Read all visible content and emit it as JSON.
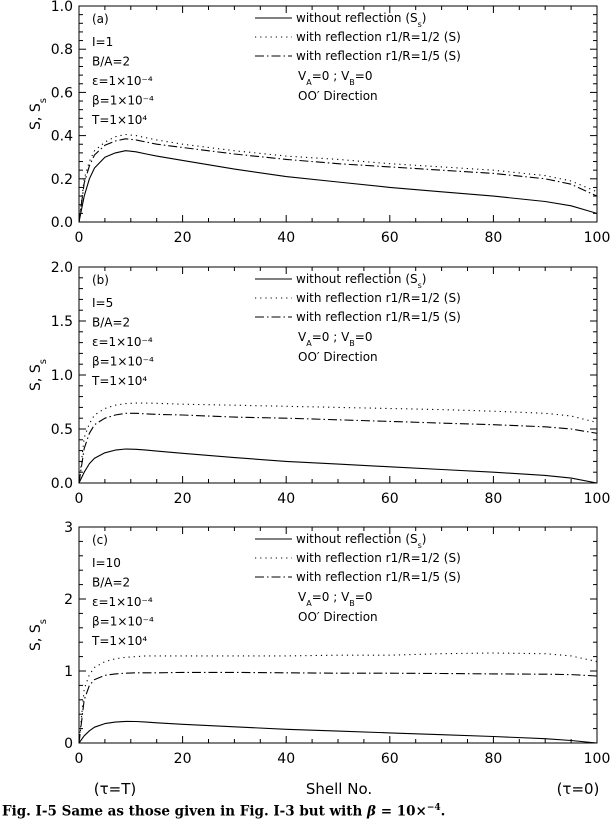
{
  "figure": {
    "xlabel": "Shell No.",
    "x_end_labels": {
      "left": "(τ=T)",
      "right": "(τ=0)"
    },
    "caption": {
      "prefix": "Fig. I-5 Same as those given in Fig. I-3 but with ",
      "beta_symbol": "β",
      "eq_value": " = 10×",
      "exponent": "−4",
      "suffix": "."
    }
  },
  "chart_data": [
    {
      "type": "line",
      "panel_label": "(a)",
      "ylabel": "S, S_s",
      "xlim": [
        0,
        100
      ],
      "ylim": [
        0,
        1.0
      ],
      "xticks": [
        0,
        20,
        40,
        60,
        80,
        100
      ],
      "yticks": [
        0.0,
        0.2,
        0.4,
        0.6,
        0.8,
        1.0
      ],
      "ytick_labels": [
        "0.0",
        "0.2",
        "0.4",
        "0.6",
        "0.8",
        "1.0"
      ],
      "params": [
        "I=1",
        "B/A=2",
        "ε=1×10⁻⁴",
        "β=1×10⁻⁴",
        "T=1×10⁴"
      ],
      "notes": [
        "V_A=0 ; V_B=0",
        "OO′ Direction"
      ],
      "series": [
        {
          "name": "without reflection (S_s)",
          "style": "solid",
          "x": [
            0,
            1,
            2,
            3,
            5,
            7,
            9,
            11,
            13,
            15,
            20,
            30,
            40,
            50,
            60,
            70,
            80,
            90,
            95,
            100
          ],
          "values": [
            0.0,
            0.12,
            0.2,
            0.25,
            0.3,
            0.32,
            0.33,
            0.325,
            0.315,
            0.305,
            0.285,
            0.245,
            0.21,
            0.185,
            0.16,
            0.14,
            0.12,
            0.095,
            0.075,
            0.04
          ]
        },
        {
          "name": "with reflection r1/R=1/2 (S)",
          "style": "dotted",
          "x": [
            0,
            1,
            2,
            3,
            5,
            7,
            9,
            11,
            13,
            15,
            20,
            30,
            40,
            50,
            60,
            70,
            80,
            90,
            95,
            100
          ],
          "values": [
            0.0,
            0.2,
            0.28,
            0.33,
            0.37,
            0.395,
            0.405,
            0.4,
            0.39,
            0.38,
            0.36,
            0.33,
            0.305,
            0.29,
            0.27,
            0.255,
            0.24,
            0.215,
            0.19,
            0.14
          ]
        },
        {
          "name": "with reflection r1/R=1/5 (S)",
          "style": "dashdot",
          "x": [
            0,
            1,
            2,
            3,
            5,
            7,
            9,
            11,
            13,
            15,
            20,
            30,
            40,
            50,
            60,
            70,
            80,
            90,
            95,
            100
          ],
          "values": [
            0.0,
            0.18,
            0.26,
            0.31,
            0.355,
            0.375,
            0.385,
            0.38,
            0.37,
            0.36,
            0.345,
            0.315,
            0.29,
            0.27,
            0.255,
            0.24,
            0.225,
            0.2,
            0.175,
            0.12
          ]
        }
      ]
    },
    {
      "type": "line",
      "panel_label": "(b)",
      "ylabel": "S, S_s",
      "xlim": [
        0,
        100
      ],
      "ylim": [
        0,
        2.0
      ],
      "xticks": [
        0,
        20,
        40,
        60,
        80,
        100
      ],
      "yticks": [
        0.0,
        0.5,
        1.0,
        1.5,
        2.0
      ],
      "ytick_labels": [
        "0.0",
        "0.5",
        "1.0",
        "1.5",
        "2.0"
      ],
      "params": [
        "I=5",
        "B/A=2",
        "ε=1×10⁻⁴",
        "β=1×10⁻⁴",
        "T=1×10⁴"
      ],
      "notes": [
        "V_A=0 ; V_B=0",
        "OO′ Direction"
      ],
      "series": [
        {
          "name": "without reflection (S_s)",
          "style": "solid",
          "x": [
            0,
            1,
            2,
            3,
            5,
            7,
            9,
            11,
            13,
            15,
            20,
            30,
            40,
            50,
            60,
            70,
            80,
            90,
            95,
            100
          ],
          "values": [
            0.0,
            0.1,
            0.18,
            0.23,
            0.28,
            0.305,
            0.315,
            0.312,
            0.305,
            0.295,
            0.275,
            0.235,
            0.2,
            0.175,
            0.15,
            0.125,
            0.1,
            0.07,
            0.045,
            0.0
          ]
        },
        {
          "name": "with reflection r1/R=1/2 (S)",
          "style": "dotted",
          "x": [
            0,
            1,
            2,
            3,
            5,
            7,
            9,
            11,
            13,
            15,
            20,
            30,
            40,
            50,
            60,
            70,
            80,
            90,
            95,
            100
          ],
          "values": [
            0.0,
            0.42,
            0.55,
            0.63,
            0.69,
            0.72,
            0.735,
            0.74,
            0.74,
            0.738,
            0.73,
            0.72,
            0.71,
            0.7,
            0.69,
            0.68,
            0.665,
            0.645,
            0.62,
            0.56
          ]
        },
        {
          "name": "with reflection r1/R=1/5 (S)",
          "style": "dashdot",
          "x": [
            0,
            1,
            2,
            3,
            5,
            7,
            9,
            11,
            13,
            15,
            20,
            30,
            40,
            50,
            60,
            70,
            80,
            90,
            95,
            100
          ],
          "values": [
            0.0,
            0.32,
            0.46,
            0.54,
            0.6,
            0.63,
            0.645,
            0.645,
            0.64,
            0.635,
            0.63,
            0.61,
            0.6,
            0.585,
            0.57,
            0.555,
            0.54,
            0.52,
            0.5,
            0.46
          ]
        }
      ]
    },
    {
      "type": "line",
      "panel_label": "(c)",
      "ylabel": "S, S_s",
      "xlim": [
        0,
        100
      ],
      "ylim": [
        0,
        3
      ],
      "xticks": [
        0,
        20,
        40,
        60,
        80,
        100
      ],
      "yticks": [
        0,
        1,
        2,
        3
      ],
      "ytick_labels": [
        "0",
        "1",
        "2",
        "3"
      ],
      "params": [
        "I=10",
        "B/A=2",
        "ε=1×10⁻⁴",
        "β=1×10⁻⁴",
        "T=1×10⁴"
      ],
      "notes": [
        "V_A=0 ; V_B=0",
        "OO′ Direction"
      ],
      "series": [
        {
          "name": "without reflection (S_s)",
          "style": "solid",
          "x": [
            0,
            1,
            2,
            3,
            5,
            7,
            9,
            11,
            13,
            15,
            20,
            30,
            40,
            50,
            60,
            70,
            80,
            90,
            95,
            100
          ],
          "values": [
            0.0,
            0.1,
            0.17,
            0.22,
            0.27,
            0.29,
            0.3,
            0.298,
            0.29,
            0.28,
            0.26,
            0.225,
            0.19,
            0.165,
            0.14,
            0.115,
            0.09,
            0.06,
            0.035,
            0.0
          ]
        },
        {
          "name": "with reflection r1/R=1/2 (S)",
          "style": "dotted",
          "x": [
            0,
            1,
            2,
            3,
            5,
            7,
            9,
            11,
            13,
            15,
            20,
            30,
            40,
            50,
            60,
            70,
            80,
            90,
            95,
            100
          ],
          "values": [
            0.0,
            0.75,
            0.95,
            1.05,
            1.13,
            1.17,
            1.19,
            1.2,
            1.21,
            1.21,
            1.21,
            1.21,
            1.21,
            1.22,
            1.22,
            1.24,
            1.25,
            1.24,
            1.21,
            1.13
          ]
        },
        {
          "name": "with reflection r1/R=1/5 (S)",
          "style": "dashdot",
          "x": [
            0,
            1,
            2,
            3,
            5,
            7,
            9,
            11,
            13,
            15,
            20,
            30,
            40,
            50,
            60,
            70,
            80,
            90,
            95,
            100
          ],
          "values": [
            0.0,
            0.6,
            0.8,
            0.88,
            0.94,
            0.96,
            0.97,
            0.975,
            0.975,
            0.975,
            0.98,
            0.98,
            0.975,
            0.97,
            0.97,
            0.965,
            0.96,
            0.955,
            0.95,
            0.93
          ]
        }
      ]
    }
  ]
}
